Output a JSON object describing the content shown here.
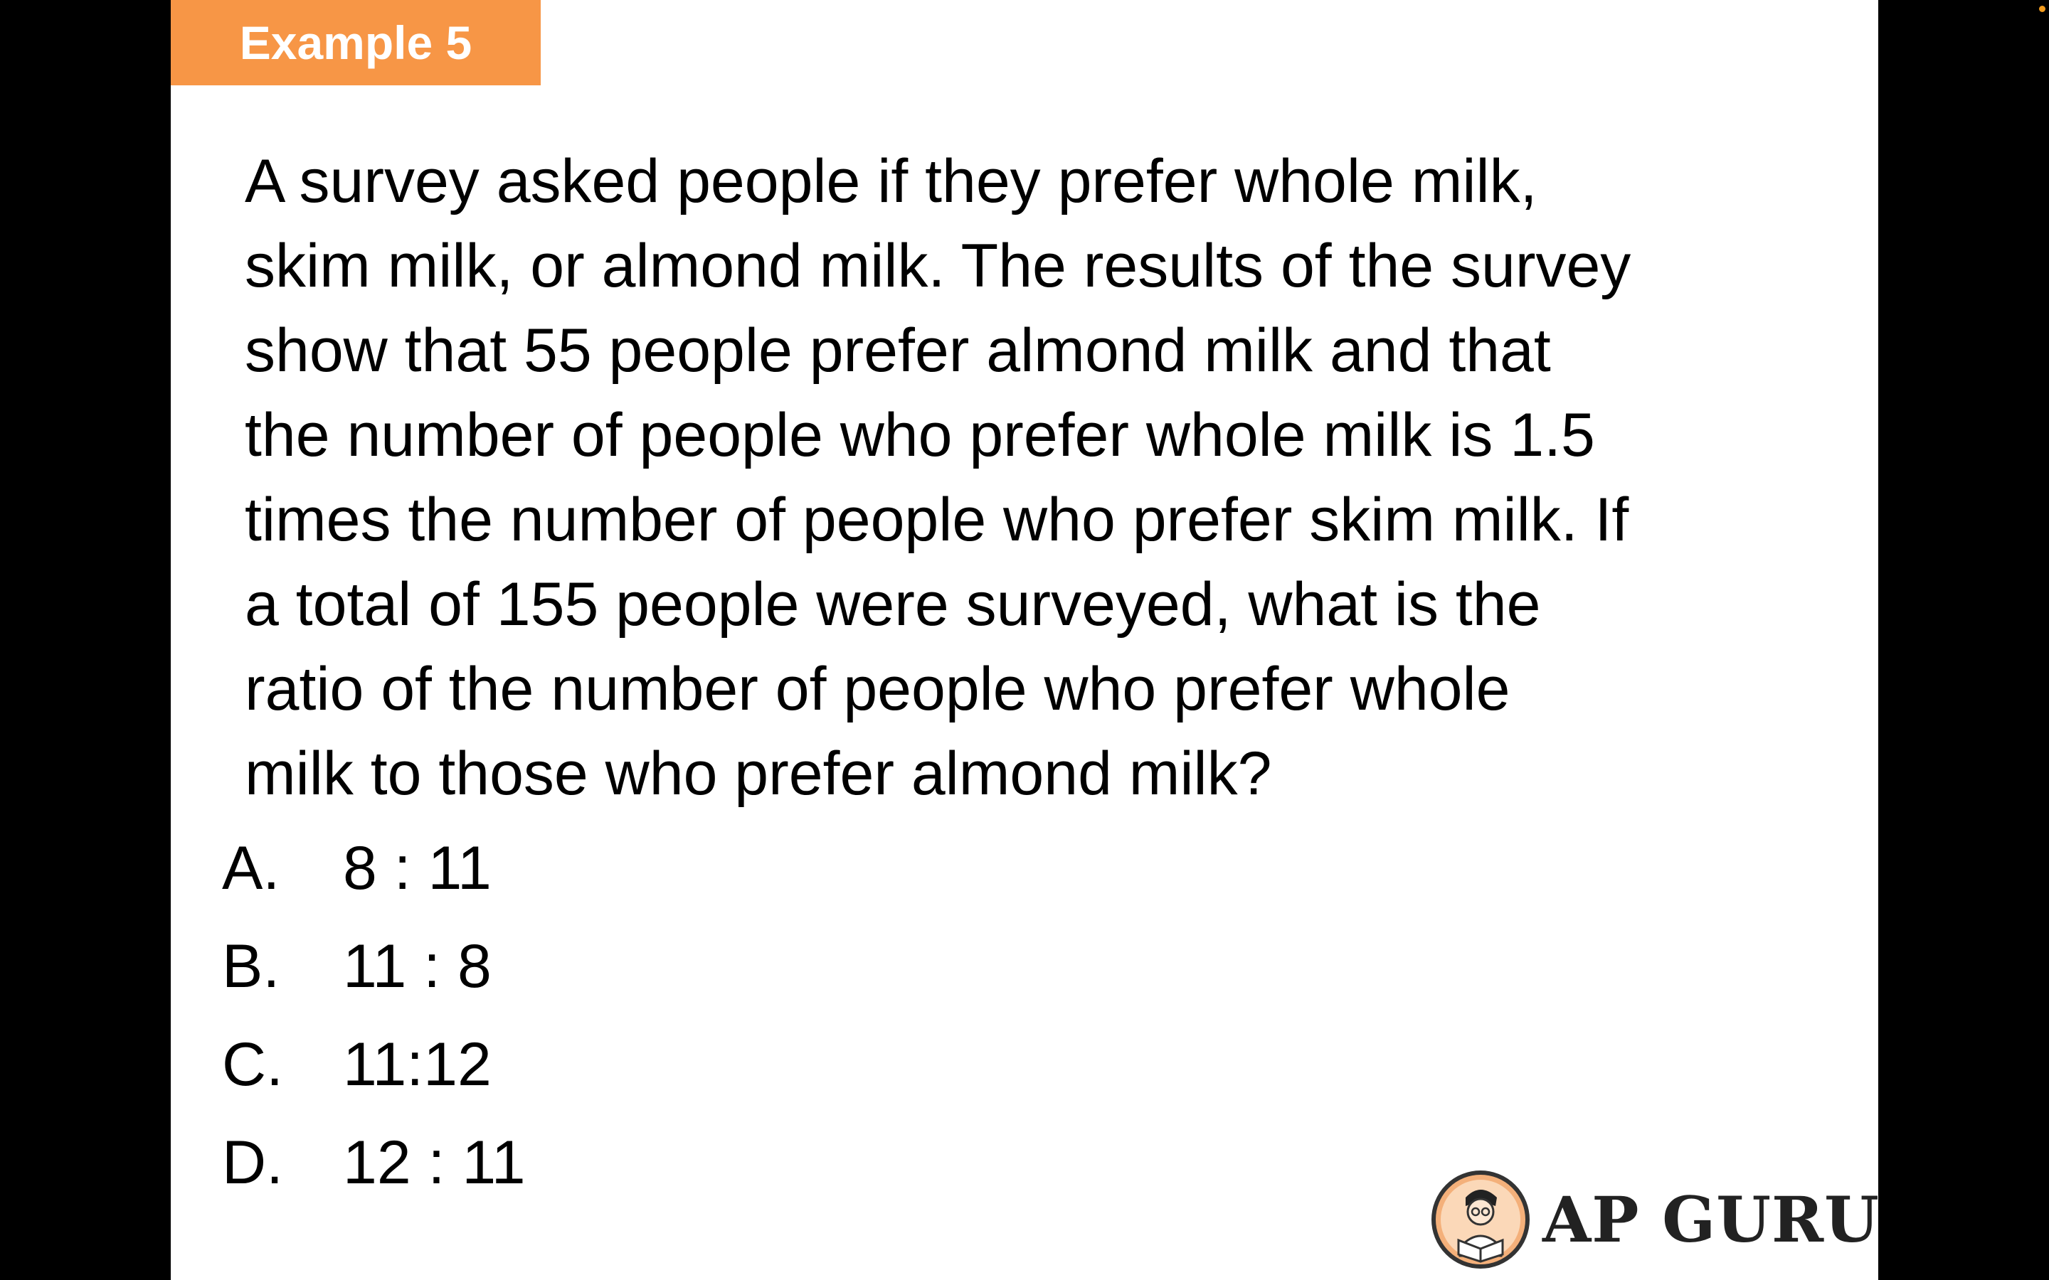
{
  "slide": {
    "tag": "Example 5",
    "question_lines": [
      "A survey asked people if they prefer whole milk,",
      "skim milk, or almond milk.  The results of the survey",
      "show that 55 people prefer almond milk and that",
      "the number of people who prefer whole milk is 1.5",
      "times the number of people who prefer skim milk.  If",
      "a total of 155 people were surveyed, what is the",
      "ratio of the number of people who prefer whole",
      "milk to those who prefer almond milk?"
    ],
    "options": [
      {
        "letter": "A.",
        "value": "8 : 11"
      },
      {
        "letter": "B.",
        "value": "11 : 8"
      },
      {
        "letter": "C.",
        "value": "11:12"
      },
      {
        "letter": "D.",
        "value": "12 : 11"
      }
    ],
    "logo_text": "AP GURU"
  },
  "colors": {
    "tag_background": "#f79646",
    "background": "#000000",
    "slide_background": "#ffffff",
    "indicator_dot": "#f29b1d"
  },
  "icons": {
    "logo": "reading-person-logo-icon",
    "indicator": "recording-dot-icon"
  }
}
